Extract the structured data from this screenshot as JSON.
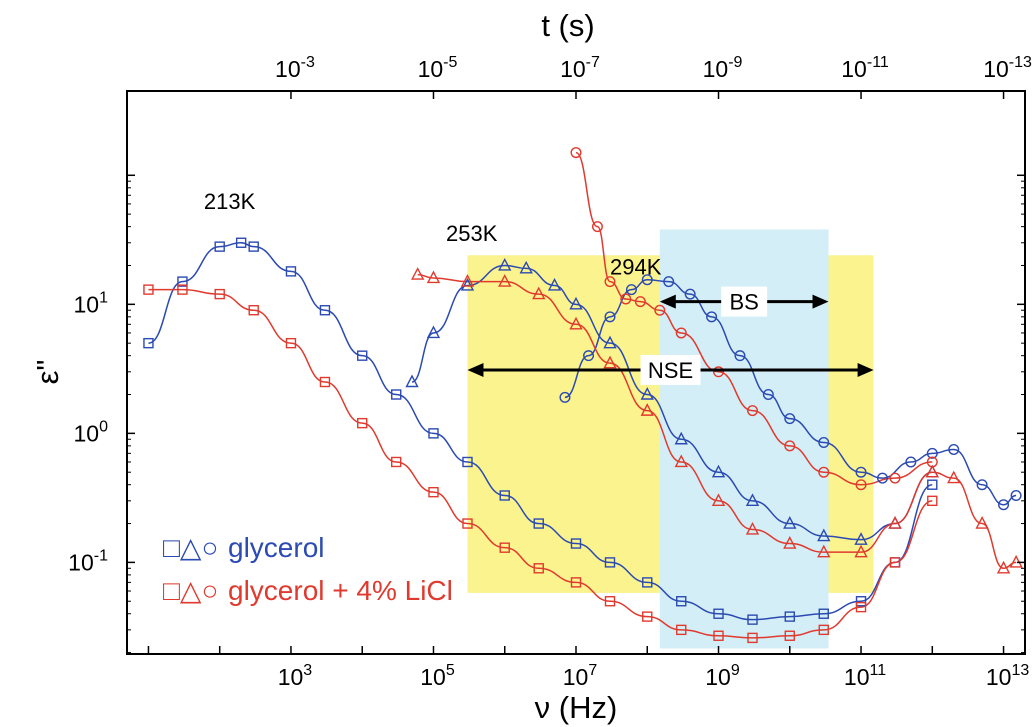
{
  "chart_data": {
    "type": "scatter",
    "title": "",
    "xlabel": "ν (Hz)",
    "ylabel": "ε\"",
    "top_xlabel": "t (s)",
    "x_scale": "log",
    "y_scale": "log",
    "xlim": [
      5,
      20000000000000.0
    ],
    "ylim": [
      0.0195,
      450
    ],
    "x_ticks": [
      {
        "value": 1000.0,
        "base": "10",
        "exp": "3"
      },
      {
        "value": 100000.0,
        "base": "10",
        "exp": "5"
      },
      {
        "value": 10000000.0,
        "base": "10",
        "exp": "7"
      },
      {
        "value": 1000000000.0,
        "base": "10",
        "exp": "9"
      },
      {
        "value": 100000000000.0,
        "base": "10",
        "exp": "11"
      },
      {
        "value": 10000000000000.0,
        "base": "10",
        "exp": "13"
      }
    ],
    "y_ticks": [
      {
        "value": 0.1,
        "base": "10",
        "exp": "-1"
      },
      {
        "value": 1,
        "base": "10",
        "exp": "0"
      },
      {
        "value": 10,
        "base": "10",
        "exp": "1"
      }
    ],
    "top_ticks": [
      {
        "value": 0.001,
        "base": "10",
        "exp": "-3"
      },
      {
        "value": 1e-05,
        "base": "10",
        "exp": "-5"
      },
      {
        "value": 1e-07,
        "base": "10",
        "exp": "-7"
      },
      {
        "value": 1e-09,
        "base": "10",
        "exp": "-9"
      },
      {
        "value": 1e-11,
        "base": "10",
        "exp": "-11"
      },
      {
        "value": 1e-13,
        "base": "10",
        "exp": "-13"
      }
    ],
    "regions": [
      {
        "label": "NSE",
        "x_from": 300000.0,
        "x_to": 150000000000.0,
        "y_from": 0.058,
        "y_to": 24,
        "color": "#fbf38e"
      },
      {
        "label": "BS",
        "x_from": 150000000.0,
        "x_to": 35000000000.0,
        "y_from": 0.0215,
        "y_to": 38,
        "color": "#d3eef6"
      }
    ],
    "arrows": [
      {
        "label": "NSE",
        "x_from": 300000.0,
        "x_to": 150000000000.0,
        "y": 3.1
      },
      {
        "label": "BS",
        "x_from": 150000000.0,
        "x_to": 35000000000.0,
        "y": 10.5
      }
    ],
    "temperature_labels": [
      {
        "text": "213K",
        "x": 60,
        "y": 55
      },
      {
        "text": "253K",
        "x": 150000.0,
        "y": 31
      },
      {
        "text": "294K",
        "x": 30000000.0,
        "y": 17
      }
    ],
    "legend": [
      {
        "symbols": "□△○",
        "text": "glycerol",
        "color": "#2b4ab2"
      },
      {
        "symbols": "□△○",
        "text": "glycerol + 4% LiCl",
        "color": "#e03a2f"
      }
    ],
    "series": [
      {
        "group": "glycerol",
        "temperature": "213K",
        "marker": "square",
        "color": "#2b4ab2",
        "x": [
          10,
          30,
          100,
          200,
          300,
          1000,
          3000,
          10000.0,
          30000.0,
          100000.0,
          300000.0,
          1000000.0,
          3000000.0,
          10000000.0,
          30000000.0,
          100000000.0,
          300000000.0,
          1000000000.0,
          3000000000.0,
          10000000000.0,
          30000000000.0,
          100000000000.0,
          300000000000.0,
          1000000000000.0
        ],
        "y": [
          5,
          15,
          28,
          30,
          28,
          18,
          9,
          4,
          2,
          1,
          0.6,
          0.33,
          0.2,
          0.14,
          0.1,
          0.07,
          0.05,
          0.04,
          0.036,
          0.038,
          0.04,
          0.05,
          0.1,
          0.4
        ]
      },
      {
        "group": "glycerol",
        "temperature": "253K",
        "marker": "triangle",
        "color": "#2b4ab2",
        "x": [
          50000.0,
          100000.0,
          300000.0,
          1000000.0,
          2000000.0,
          5000000.0,
          10000000.0,
          30000000.0,
          100000000.0,
          300000000.0,
          1000000000.0,
          3000000000.0,
          10000000000.0,
          30000000000.0,
          100000000000.0,
          300000000000.0,
          1000000000000.0
        ],
        "y": [
          2.5,
          6,
          14,
          20,
          19,
          14,
          10,
          5,
          2,
          0.9,
          0.5,
          0.3,
          0.2,
          0.16,
          0.15,
          0.2,
          0.5
        ]
      },
      {
        "group": "glycerol",
        "temperature": "294K",
        "marker": "circle",
        "color": "#2b4ab2",
        "x": [
          7000000.0,
          15000000.0,
          30000000.0,
          60000000.0,
          100000000.0,
          200000000.0,
          400000000.0,
          800000000.0,
          2000000000.0,
          5000000000.0,
          10000000000.0,
          30000000000.0,
          100000000000.0,
          200000000000.0,
          500000000000.0,
          1000000000000.0,
          2000000000000.0,
          5000000000000.0,
          10000000000000.0,
          15000000000000.0
        ],
        "y": [
          1.9,
          4,
          8,
          13,
          15.5,
          15,
          12,
          8,
          4,
          2,
          1.3,
          0.85,
          0.5,
          0.45,
          0.6,
          0.7,
          0.75,
          0.4,
          0.28,
          0.33
        ]
      },
      {
        "group": "glycerol + 4% LiCl",
        "temperature": "213K",
        "marker": "square",
        "color": "#e03a2f",
        "x": [
          10,
          30,
          100,
          300,
          1000,
          3000,
          10000.0,
          30000.0,
          100000.0,
          300000.0,
          1000000.0,
          3000000.0,
          10000000.0,
          30000000.0,
          100000000.0,
          300000000.0,
          1000000000.0,
          3000000000.0,
          10000000000.0,
          30000000000.0,
          100000000000.0,
          300000000000.0,
          1000000000000.0
        ],
        "y": [
          13,
          13,
          12,
          9,
          5,
          2.5,
          1.2,
          0.6,
          0.35,
          0.2,
          0.13,
          0.09,
          0.07,
          0.05,
          0.038,
          0.03,
          0.027,
          0.026,
          0.027,
          0.03,
          0.045,
          0.1,
          0.3
        ]
      },
      {
        "group": "glycerol + 4% LiCl",
        "temperature": "253K",
        "marker": "triangle",
        "color": "#e03a2f",
        "x": [
          60000.0,
          100000.0,
          300000.0,
          1000000.0,
          3000000.0,
          10000000.0,
          30000000.0,
          100000000.0,
          300000000.0,
          1000000000.0,
          3000000000.0,
          10000000000.0,
          30000000000.0,
          100000000000.0,
          300000000000.0,
          1000000000000.0,
          2000000000000.0,
          5000000000000.0,
          10000000000000.0,
          15000000000000.0
        ],
        "y": [
          17,
          16,
          15,
          15,
          12,
          7,
          3.5,
          1.5,
          0.6,
          0.3,
          0.18,
          0.14,
          0.12,
          0.12,
          0.2,
          0.5,
          0.45,
          0.2,
          0.09,
          0.1
        ]
      },
      {
        "group": "glycerol + 4% LiCl",
        "temperature": "294K",
        "marker": "circle",
        "color": "#e03a2f",
        "x": [
          10000000.0,
          20000000.0,
          30000000.0,
          50000000.0,
          80000000.0,
          150000000.0,
          300000000.0,
          1000000000.0,
          3000000000.0,
          10000000000.0,
          30000000000.0,
          100000000000.0,
          300000000000.0,
          1000000000000.0
        ],
        "y": [
          150,
          40,
          15,
          11,
          10.5,
          9,
          6,
          3,
          1.5,
          0.8,
          0.5,
          0.4,
          0.45,
          0.6
        ]
      }
    ]
  }
}
